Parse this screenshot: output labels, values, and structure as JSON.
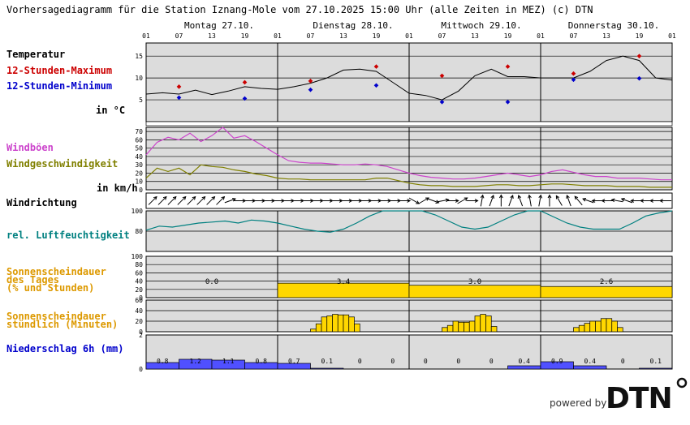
{
  "title": "Vorhersagediagramm für die Station Iznang-Mole vom 27.10.2025 15:00 Uhr (alle Zeiten in MEZ)   (c) DTN",
  "days": [
    "Montag 27.10.",
    "Dienstag 28.10.",
    "Mittwoch 29.10.",
    "Donnerstag 30.10."
  ],
  "hour_ticks": [
    "01",
    "07",
    "13",
    "19",
    "01",
    "07",
    "13",
    "19",
    "01",
    "07",
    "13",
    "19",
    "01",
    "07",
    "13",
    "19",
    "01"
  ],
  "labels": {
    "temperatur": "Temperatur",
    "max": "12-Stunden-Maximum",
    "min": "12-Stunden-Minimum",
    "temp_unit": "in °C",
    "windboeen": "Windböen",
    "windgeschw": "Windgeschwindigkeit",
    "wind_unit": "in km/h",
    "windrichtung": "Windrichtung",
    "feuchte": "rel. Luftfeuchtigkeit",
    "sonne_tag_1": "Sonnenscheindauer",
    "sonne_tag_2": "des Tages",
    "sonne_tag_3": "(% und Stunden)",
    "sonne_std_1": "Sonnenscheindauer",
    "sonne_std_2": "stündlich (Minuten)",
    "niederschlag": "Niederschlag 6h (mm)"
  },
  "colors": {
    "bg": "#dcdcdc",
    "temp": "#000000",
    "max": "#cc0000",
    "min": "#0000cc",
    "gust": "#cc44cc",
    "wind": "#808000",
    "humidity": "#008080",
    "sun": "#ffd700",
    "rain": "#5050ff",
    "sun_label": "#dd9900",
    "rain_label": "#0000cc",
    "hum_label": "#008080",
    "gust_label": "#cc44cc",
    "wind_label": "#808000"
  },
  "chart_data": [
    {
      "type": "line",
      "name": "temperature",
      "ylim": [
        0,
        18
      ],
      "yticks": [
        5,
        10,
        15
      ],
      "hours": [
        0,
        6,
        12,
        18,
        24,
        30,
        36,
        42,
        48,
        54,
        60,
        66,
        72,
        78,
        84,
        90
      ],
      "temp_curve": [
        6.3,
        6.6,
        6.3,
        7.2,
        6.2,
        7.0,
        8.0,
        7.6,
        7.4,
        8.0,
        8.8,
        10.0,
        11.8,
        12.0,
        11.5,
        9.0,
        6.5,
        6.0,
        5.0,
        7.0,
        10.5,
        12.0,
        10.3,
        10.3,
        10.0,
        10.0,
        10.0,
        11.5,
        14.0,
        15.0,
        14.0,
        10.0,
        9.5
      ],
      "max_points": [
        {
          "h": 6,
          "v": 8.0
        },
        {
          "h": 18,
          "v": 9.0
        },
        {
          "h": 30,
          "v": 9.3
        },
        {
          "h": 42,
          "v": 12.6
        },
        {
          "h": 54,
          "v": 10.5
        },
        {
          "h": 66,
          "v": 12.6
        },
        {
          "h": 78,
          "v": 11.0
        },
        {
          "h": 90,
          "v": 15.0
        }
      ],
      "min_points": [
        {
          "h": 6,
          "v": 5.5
        },
        {
          "h": 18,
          "v": 5.3
        },
        {
          "h": 30,
          "v": 7.3
        },
        {
          "h": 42,
          "v": 8.3
        },
        {
          "h": 54,
          "v": 4.5
        },
        {
          "h": 66,
          "v": 4.5
        },
        {
          "h": 78,
          "v": 9.6
        },
        {
          "h": 90,
          "v": 9.9
        }
      ]
    },
    {
      "type": "line",
      "name": "wind",
      "ylim": [
        0,
        75
      ],
      "yticks": [
        0,
        10,
        20,
        30,
        40,
        50,
        60,
        70
      ],
      "gust": [
        42,
        57,
        63,
        60,
        68,
        58,
        65,
        75,
        62,
        65,
        58,
        50,
        42,
        35,
        33,
        32,
        32,
        31,
        30,
        30,
        31,
        30,
        28,
        24,
        20,
        17,
        15,
        14,
        13,
        13,
        14,
        16,
        18,
        20,
        18,
        16,
        18,
        22,
        24,
        21,
        18,
        16,
        16,
        14,
        14,
        14,
        13,
        12,
        12
      ],
      "speed": [
        14,
        26,
        22,
        26,
        18,
        30,
        28,
        27,
        24,
        22,
        19,
        17,
        14,
        13,
        13,
        12,
        12,
        12,
        12,
        12,
        12,
        14,
        14,
        11,
        8,
        6,
        5,
        5,
        4,
        4,
        4,
        5,
        6,
        6,
        5,
        5,
        6,
        7,
        7,
        6,
        5,
        5,
        5,
        4,
        4,
        4,
        3,
        3,
        3
      ]
    },
    {
      "type": "line",
      "name": "humidity",
      "ylim": [
        60,
        100
      ],
      "yticks": [
        80,
        100
      ],
      "values": [
        81,
        85,
        84,
        86,
        88,
        89,
        90,
        88,
        91,
        90,
        88,
        85,
        82,
        80,
        79,
        82,
        88,
        95,
        100,
        100,
        100,
        100,
        96,
        90,
        84,
        82,
        84,
        90,
        96,
        100,
        100,
        94,
        88,
        84,
        82,
        82,
        82,
        88,
        95,
        98,
        100
      ]
    },
    {
      "type": "bar",
      "name": "daily_sunshine",
      "ylim": [
        0,
        100
      ],
      "yticks": [
        0,
        20,
        40,
        60,
        80,
        100
      ],
      "categories": [
        "Montag 27.10.",
        "Dienstag 28.10.",
        "Mittwoch 29.10.",
        "Donnerstag 30.10."
      ],
      "values": [
        0,
        35,
        30,
        27
      ],
      "labels": [
        "0.0",
        "3.4",
        "3.0",
        "2.6"
      ]
    },
    {
      "type": "bar",
      "name": "hourly_sunshine",
      "ylim": [
        0,
        60
      ],
      "yticks": [
        0,
        20,
        40,
        60
      ],
      "bars": [
        {
          "h": 30,
          "v": 5
        },
        {
          "h": 31,
          "v": 15
        },
        {
          "h": 32,
          "v": 28
        },
        {
          "h": 33,
          "v": 30
        },
        {
          "h": 34,
          "v": 33
        },
        {
          "h": 35,
          "v": 32
        },
        {
          "h": 36,
          "v": 32
        },
        {
          "h": 37,
          "v": 28
        },
        {
          "h": 38,
          "v": 15
        },
        {
          "h": 54,
          "v": 8
        },
        {
          "h": 55,
          "v": 12
        },
        {
          "h": 56,
          "v": 20
        },
        {
          "h": 57,
          "v": 18
        },
        {
          "h": 58,
          "v": 18
        },
        {
          "h": 59,
          "v": 20
        },
        {
          "h": 60,
          "v": 30
        },
        {
          "h": 61,
          "v": 33
        },
        {
          "h": 62,
          "v": 30
        },
        {
          "h": 63,
          "v": 10
        },
        {
          "h": 78,
          "v": 8
        },
        {
          "h": 79,
          "v": 12
        },
        {
          "h": 80,
          "v": 16
        },
        {
          "h": 81,
          "v": 20
        },
        {
          "h": 82,
          "v": 20
        },
        {
          "h": 83,
          "v": 25
        },
        {
          "h": 84,
          "v": 25
        },
        {
          "h": 85,
          "v": 20
        },
        {
          "h": 86,
          "v": 8
        }
      ]
    },
    {
      "type": "bar",
      "name": "precipitation_6h",
      "ylim": [
        0,
        2
      ],
      "yticks": [
        0,
        2
      ],
      "values": [
        0.8,
        1.2,
        1.1,
        0.8,
        0.7,
        0.1,
        0,
        0,
        0,
        0,
        0,
        0.4,
        0.9,
        0.4,
        0,
        0.1
      ],
      "labels": [
        "0.8",
        "1.2",
        "1.1",
        "0.8",
        "0.7",
        "0.1",
        "0",
        "0",
        "0",
        "0",
        "0",
        "0.4",
        "0.9",
        "0.4",
        "0",
        "0.1"
      ]
    }
  ],
  "wind_direction_deg": [
    225,
    225,
    225,
    225,
    225,
    225,
    225,
    225,
    225,
    225,
    225,
    225,
    225,
    225,
    225,
    270,
    270,
    270,
    270,
    270,
    270,
    270,
    270,
    270,
    270,
    270,
    270,
    270,
    270,
    270,
    270,
    270,
    270,
    270,
    270,
    270,
    270,
    270,
    270,
    270,
    270,
    270,
    270,
    270,
    270,
    270,
    270,
    270,
    270,
    270,
    270,
    270,
    270,
    270,
    270,
    270,
    270,
    270,
    270,
    270,
    270,
    270,
    270,
    270,
    270,
    270,
    270,
    270,
    270,
    270,
    270,
    270,
    270,
    270,
    270,
    270,
    270,
    270,
    270,
    270,
    270,
    270,
    270,
    270,
    270,
    270,
    270,
    270,
    270,
    270,
    270,
    270,
    270,
    270,
    270,
    270,
    270
  ],
  "wind_dirs": [
    225,
    225,
    225,
    225,
    225,
    225,
    225,
    225,
    250,
    270,
    270,
    270,
    270,
    270,
    270,
    270,
    270,
    270,
    270,
    270,
    270,
    270,
    270,
    270,
    270,
    270,
    270,
    300,
    240,
    290,
    260,
    270,
    240,
    270,
    190,
    200,
    180,
    200,
    160,
    170,
    190,
    180,
    150,
    160,
    140,
    110,
    90,
    90,
    100,
    110,
    90,
    90,
    90,
    90
  ],
  "footer": {
    "powered": "powered by",
    "logo": "DTN"
  }
}
